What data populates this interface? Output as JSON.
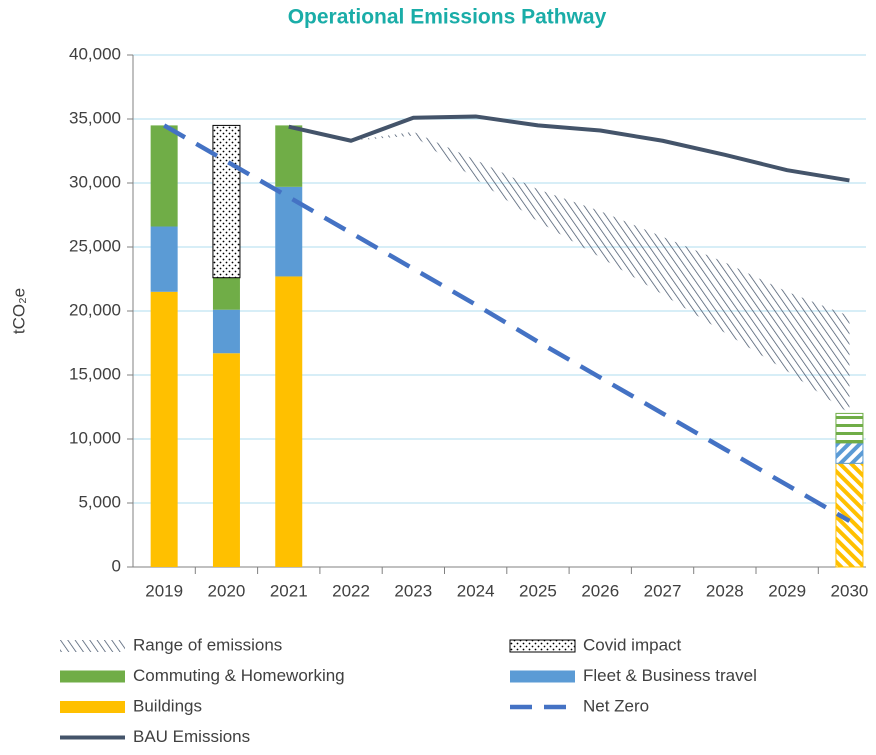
{
  "chart_data": {
    "type": "combo",
    "title": "Operational Emissions Pathway",
    "y_label": "tCO₂e",
    "categories": [
      "2019",
      "2020",
      "2021",
      "2022",
      "2023",
      "2024",
      "2025",
      "2026",
      "2027",
      "2028",
      "2029",
      "2030"
    ],
    "ylim": [
      0,
      40000
    ],
    "yticks": [
      0,
      {
        "value": 5000,
        "label": "5,000"
      },
      {
        "value": 10000,
        "label": "10,000"
      },
      {
        "value": 15000,
        "label": "15,000"
      },
      {
        "value": 20000,
        "label": "20,000"
      },
      {
        "value": 25000,
        "label": "25,000"
      },
      {
        "value": 30000,
        "label": "30,000"
      },
      {
        "value": 35000,
        "label": "35,000"
      },
      {
        "value": 40000,
        "label": "40,000"
      }
    ],
    "grid": true,
    "series": [
      {
        "name": "Range of emissions",
        "kind": "range",
        "color": "#44546a",
        "values": [
          null,
          null,
          null,
          33300,
          34000,
          31800,
          29500,
          27800,
          25800,
          23800,
          21500,
          19600
        ],
        "lower": [
          null,
          null,
          null,
          33300,
          33700,
          30300,
          27000,
          24200,
          21300,
          18300,
          15300,
          12000
        ]
      },
      {
        "name": "Covid impact",
        "kind": "bar",
        "color": "#000000",
        "values": [
          null,
          11900,
          null,
          null,
          null,
          null,
          null,
          null,
          null,
          null,
          null,
          null
        ]
      },
      {
        "name": "Commuting & Homeworking",
        "kind": "bar",
        "color": "#70ad47",
        "values": [
          7900,
          2500,
          4800,
          null,
          null,
          null,
          null,
          null,
          null,
          null,
          null,
          2300
        ]
      },
      {
        "name": "Fleet & Business travel",
        "kind": "bar",
        "color": "#5b9bd5",
        "values": [
          5100,
          3400,
          7000,
          null,
          null,
          null,
          null,
          null,
          null,
          null,
          null,
          1600
        ]
      },
      {
        "name": "Buildings",
        "kind": "bar",
        "color": "#ffc000",
        "values": [
          21500,
          16700,
          22700,
          null,
          null,
          null,
          null,
          null,
          null,
          null,
          null,
          8100
        ]
      },
      {
        "name": "Net Zero",
        "kind": "dashed",
        "color": "#4472c4",
        "values": [
          34500,
          31700,
          28900,
          26100,
          23300,
          20500,
          17600,
          14800,
          12000,
          9200,
          6400,
          3600
        ]
      },
      {
        "name": "BAU Emissions",
        "kind": "line",
        "color": "#44546a",
        "values": [
          null,
          null,
          34400,
          33300,
          35100,
          35200,
          34500,
          34100,
          33300,
          32200,
          31000,
          30200
        ]
      }
    ]
  }
}
